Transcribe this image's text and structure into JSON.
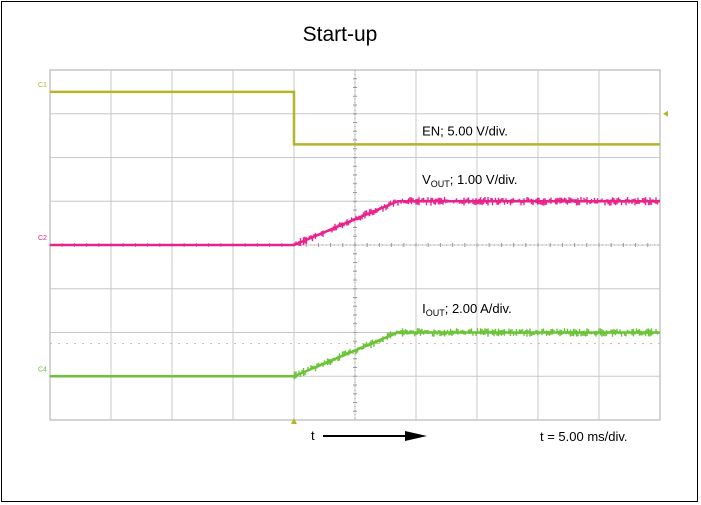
{
  "chart_data": {
    "type": "line",
    "title": "Start-up",
    "time_scale": "t = 5.00 ms/div.",
    "time_arrow_label": "t",
    "x_divisions": 10,
    "y_divisions": 8,
    "x_unit": "div",
    "y_unit": "div",
    "xlim": [
      0,
      10
    ],
    "ylim": [
      0,
      8
    ],
    "grid": true,
    "series": [
      {
        "name": "EN; 5.00 V/div.",
        "label_main": "EN; 5.00 V/div.",
        "label_sub": "",
        "label_rest": "",
        "channel_marker": "C1",
        "color": "#b5b52a",
        "noise": 0.02,
        "label_x": 6.1,
        "label_y": 6.5,
        "x": [
          0,
          4,
          4,
          10
        ],
        "y": [
          7.5,
          7.5,
          6.3,
          6.3
        ]
      },
      {
        "name": "VOUT; 1.00 V/div.",
        "label_main": "V",
        "label_sub": "OUT",
        "label_rest": "; 1.00 V/div.",
        "channel_marker": "C2",
        "color": "#e8238c",
        "noise": 0.1,
        "label_x": 6.1,
        "label_y": 5.4,
        "x": [
          0,
          4,
          5.7,
          10
        ],
        "y": [
          4.0,
          4.0,
          5.0,
          5.0
        ]
      },
      {
        "name": "IOUT; 2.00 A/div.",
        "label_main": "I",
        "label_sub": "OUT",
        "label_rest": "; 2.00 A/div.",
        "channel_marker": "C4",
        "color": "#6cc33a",
        "noise": 0.1,
        "label_x": 6.1,
        "label_y": 2.45,
        "x": [
          0,
          4,
          5.7,
          10
        ],
        "y": [
          1.0,
          1.0,
          2.0,
          2.0
        ]
      }
    ]
  }
}
